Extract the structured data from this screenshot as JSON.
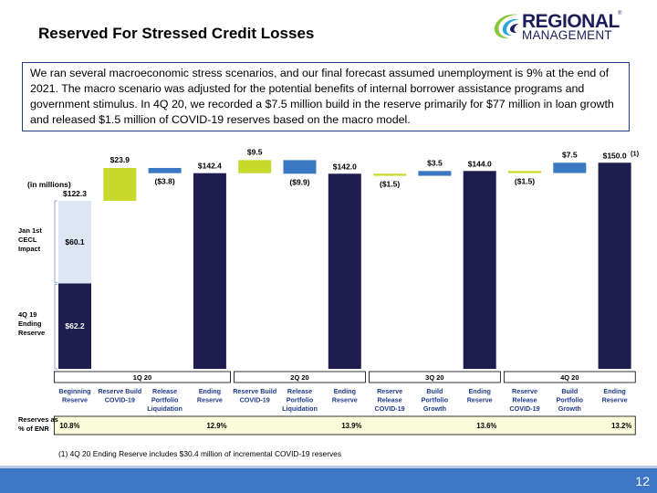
{
  "header": {
    "title": "Reserved For Stressed Credit Losses",
    "logo_line1": "REGIONAL",
    "logo_line2": "MANAGEMENT",
    "logo_reg": "®"
  },
  "summary_text": "We ran several macroeconomic stress scenarios, and our final forecast assumed unemployment is 9%  at the end of 2021. The macro scenario was adjusted for the potential benefits of internal borrower assistance programs and government stimulus. In 4Q 20, we recorded a $7.5 million build in the reserve primarily for $77 million in loan growth and released $1.5 million of COVID-19 reserves based on the macro model.",
  "chart_data": {
    "type": "bar",
    "unit_label": "(in millions)",
    "ylim": [
      0,
      152
    ],
    "categories": [
      "Beginning Reserve",
      "Reserve Build COVID-19",
      "Release Portfolio Liquidation",
      "Ending Reserve",
      "Reserve Build COVID-19",
      "Release Portfolio Liquidation",
      "Ending Reserve",
      "Reserve Release COVID-19",
      "Build Portfolio Growth",
      "Ending Reserve",
      "Reserve Release COVID-19",
      "Build Portfolio Growth",
      "Ending Reserve"
    ],
    "bars": [
      {
        "kind": "stacked",
        "label": "$122.3",
        "segments": [
          {
            "value": 62.2,
            "label": "$62.2",
            "color": "#1d1d50"
          },
          {
            "value": 60.1,
            "label": "$60.1",
            "color": "#dde6f2"
          }
        ]
      },
      {
        "kind": "delta",
        "start": 122.3,
        "value": 23.9,
        "label": "$23.9",
        "color": "#c8d92b"
      },
      {
        "kind": "delta",
        "start": 146.2,
        "value": -3.8,
        "label": "($3.8)",
        "color": "#3b78c4"
      },
      {
        "kind": "total",
        "value": 142.4,
        "label": "$142.4",
        "color": "#1d1d50"
      },
      {
        "kind": "delta",
        "start": 142.4,
        "value": 9.5,
        "label": "$9.5",
        "color": "#c8d92b"
      },
      {
        "kind": "delta",
        "start": 151.9,
        "value": -9.9,
        "label": "($9.9)",
        "color": "#3b78c4"
      },
      {
        "kind": "total",
        "value": 142.0,
        "label": "$142.0",
        "color": "#1d1d50"
      },
      {
        "kind": "delta",
        "start": 142.0,
        "value": -1.5,
        "label": "($1.5)",
        "color": "#c8d92b"
      },
      {
        "kind": "delta",
        "start": 140.5,
        "value": 3.5,
        "label": "$3.5",
        "color": "#3b78c4"
      },
      {
        "kind": "total",
        "value": 144.0,
        "label": "$144.0",
        "color": "#1d1d50"
      },
      {
        "kind": "delta",
        "start": 144.0,
        "value": -1.5,
        "label": "($1.5)",
        "color": "#c8d92b"
      },
      {
        "kind": "delta",
        "start": 142.5,
        "value": 7.5,
        "label": "$7.5",
        "color": "#3b78c4"
      },
      {
        "kind": "total",
        "value": 150.0,
        "label": "$150.0",
        "sup": "(1)",
        "color": "#1d1d50"
      }
    ],
    "side_labels": [
      {
        "text": [
          "Jan 1st",
          "CECL",
          "Impact"
        ]
      },
      {
        "text": [
          "4Q 19",
          "Ending",
          "Reserve"
        ]
      }
    ],
    "quarters": [
      {
        "label": "1Q 20",
        "from": 0,
        "to": 3
      },
      {
        "label": "2Q 20",
        "from": 4,
        "to": 6
      },
      {
        "label": "3Q 20",
        "from": 7,
        "to": 9
      },
      {
        "label": "4Q 20",
        "from": 10,
        "to": 12
      }
    ],
    "reserves_label": [
      "Reserves as",
      "% of ENR"
    ],
    "reserves": [
      {
        "index": 0,
        "value": "10.8%"
      },
      {
        "index": 3,
        "value": "12.9%"
      },
      {
        "index": 6,
        "value": "13.9%"
      },
      {
        "index": 9,
        "value": "13.6%"
      },
      {
        "index": 12,
        "value": "13.2%"
      }
    ]
  },
  "footnote": "(1) 4Q 20 Ending Reserve includes $30.4 million of incremental COVID-19 reserves",
  "page_number": "12"
}
